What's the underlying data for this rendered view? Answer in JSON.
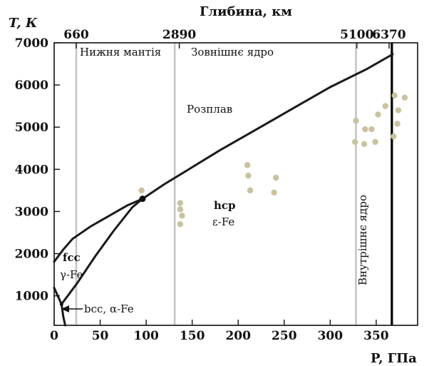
{
  "chart_data": {
    "type": "line",
    "y_axis_title": "T, К",
    "x_axis_title": "P, ГПа",
    "top_axis_title": "Глибина, км",
    "xlim": [
      0,
      395
    ],
    "ylim": [
      300,
      7000
    ],
    "x_ticks": [
      0,
      50,
      100,
      150,
      200,
      250,
      300,
      350
    ],
    "x_tick_labels": [
      "0",
      "50",
      "100",
      "150",
      "200",
      "250",
      "300",
      "350"
    ],
    "y_ticks": [
      1000,
      2000,
      3000,
      4000,
      5000,
      6000,
      7000
    ],
    "y_tick_labels": [
      "1000",
      "2000",
      "3000",
      "4000",
      "5000",
      "6000",
      "7000"
    ],
    "depth_ticks": [
      {
        "pressure": 24,
        "label": "660"
      },
      {
        "pressure": 136,
        "label": "2890"
      },
      {
        "pressure": 329,
        "label": "5100"
      },
      {
        "pressure": 364,
        "label": "6370"
      }
    ],
    "boundaries": [
      {
        "pressure": 24,
        "color": "#c4c4c4",
        "width": "thin"
      },
      {
        "pressure": 131,
        "color": "#c4c4c4",
        "width": "thin"
      },
      {
        "pressure": 328,
        "color": "#c4c4c4",
        "width": "thin"
      },
      {
        "pressure": 367,
        "color": "#000000",
        "width": "thick"
      }
    ],
    "region_labels": {
      "lower_mantle": "Нижня мантія",
      "outer_core": "Зовнішнє ядро",
      "melt": "Розплав",
      "inner_core": "Внутрішнє ядро",
      "hcp_1": "hcp",
      "hcp_2": "ε-Fe",
      "fcc_1": "fcc",
      "fcc_2": "γ-Fe",
      "bcc": "bcc, α-Fe"
    },
    "series": [
      {
        "id": "melting_curve",
        "points": [
          [
            0,
            1810
          ],
          [
            10,
            2100
          ],
          [
            20,
            2350
          ],
          [
            40,
            2650
          ],
          [
            60,
            2900
          ],
          [
            80,
            3150
          ],
          [
            96,
            3300
          ],
          [
            120,
            3650
          ],
          [
            150,
            4050
          ],
          [
            180,
            4450
          ],
          [
            220,
            4950
          ],
          [
            260,
            5450
          ],
          [
            300,
            5950
          ],
          [
            340,
            6380
          ],
          [
            368,
            6730
          ]
        ]
      },
      {
        "id": "fcc_hcp_boundary",
        "points": [
          [
            8,
            800
          ],
          [
            25,
            1300
          ],
          [
            45,
            1950
          ],
          [
            65,
            2550
          ],
          [
            85,
            3100
          ],
          [
            96,
            3300
          ]
        ]
      },
      {
        "id": "bcc_fcc_boundary",
        "points": [
          [
            0,
            1190
          ],
          [
            8,
            800
          ]
        ]
      },
      {
        "id": "bcc_hcp_boundary",
        "points": [
          [
            8,
            800
          ],
          [
            10,
            500
          ],
          [
            12,
            300
          ]
        ]
      }
    ],
    "triple_points": [
      [
        96,
        3300
      ],
      [
        8,
        800
      ]
    ],
    "scatter": [
      [
        95,
        3500
      ],
      [
        137,
        3200
      ],
      [
        137,
        3050
      ],
      [
        139,
        2900
      ],
      [
        137,
        2700
      ],
      [
        210,
        4100
      ],
      [
        211,
        3850
      ],
      [
        213,
        3500
      ],
      [
        241,
        3800
      ],
      [
        239,
        3450
      ],
      [
        328,
        5150
      ],
      [
        327,
        4650
      ],
      [
        338,
        4950
      ],
      [
        337,
        4600
      ],
      [
        345,
        4950
      ],
      [
        349,
        4650
      ],
      [
        352,
        5300
      ],
      [
        360,
        5500
      ],
      [
        370,
        5750
      ],
      [
        374,
        5400
      ],
      [
        373,
        5080
      ],
      [
        369,
        4780
      ],
      [
        381,
        5700
      ]
    ],
    "scatter_color": "#c9c2a0",
    "line_color": "#1a1a1a"
  }
}
